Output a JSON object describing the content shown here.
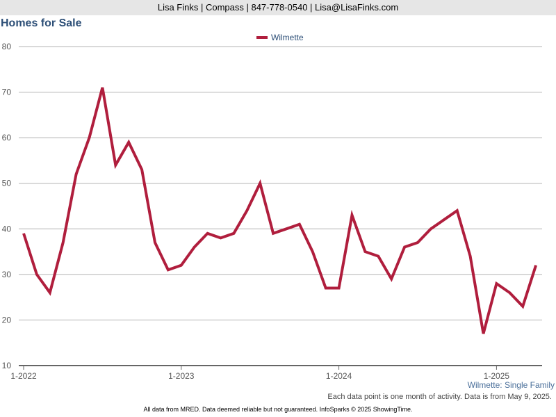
{
  "header": {
    "contact": "Lisa Finks | Compass | 847-778-0540 | Lisa@LisaFinks.com"
  },
  "chart_data": {
    "type": "line",
    "title": "Homes for Sale",
    "subtitle": "Wilmette: Single Family",
    "xlabel": "",
    "ylabel": "",
    "ylim": [
      10,
      80
    ],
    "yticks": [
      "10",
      "20",
      "30",
      "40",
      "50",
      "60",
      "70",
      "80"
    ],
    "xticks": [
      "1-2022",
      "1-2023",
      "1-2024",
      "1-2025"
    ],
    "x_start": "2022-01",
    "grid": true,
    "legend_position": "top-center",
    "series": [
      {
        "name": "Wilmette",
        "color": "#b01e3d",
        "values": [
          39,
          30,
          26,
          37,
          52,
          60,
          71,
          54,
          59,
          53,
          37,
          31,
          32,
          36,
          39,
          38,
          39,
          44,
          50,
          39,
          40,
          41,
          35,
          27,
          27,
          43,
          35,
          34,
          29,
          36,
          37,
          40,
          42,
          44,
          34,
          17,
          28,
          26,
          23,
          32
        ]
      }
    ]
  },
  "note": "Each data point is one month of activity. Data is from May 9, 2025.",
  "footer": "All data from MRED. Data deemed reliable but not guaranteed. InfoSparks © 2025 ShowingTime."
}
